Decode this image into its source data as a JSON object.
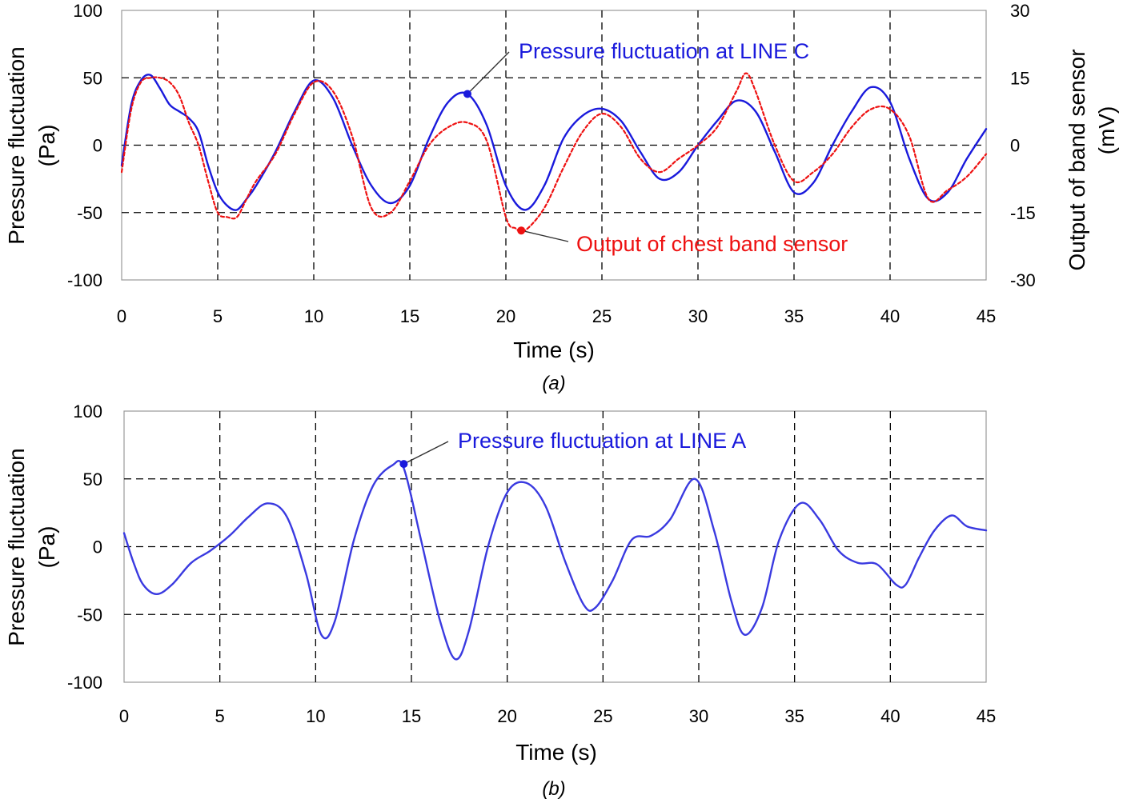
{
  "chart_data": [
    {
      "type": "line",
      "caption": "(a)",
      "xlabel": "Time (s)",
      "ylabel_lines": [
        "Pressure fluctuation",
        "(Pa)"
      ],
      "y2label_lines": [
        "Output of band sensor",
        "(mV)"
      ],
      "xlim": [
        0,
        45
      ],
      "ylim": [
        -100,
        100
      ],
      "y2lim": [
        -30,
        30
      ],
      "xticks": [
        "0",
        "5",
        "10",
        "15",
        "20",
        "25",
        "30",
        "35",
        "40",
        "45"
      ],
      "yticks": [
        "100",
        "50",
        "0",
        "-50",
        "-100"
      ],
      "y2ticks": [
        "30",
        "15",
        "0",
        "-15",
        "-30"
      ],
      "grid": true,
      "series": [
        {
          "name": "Pressure fluctuation at LINE C",
          "axis": "left",
          "color": "#1a1adc",
          "style": "solid",
          "x": [
            0,
            0.5,
            1,
            1.5,
            2,
            2.5,
            3,
            3.5,
            4,
            4.5,
            5,
            5.5,
            6,
            6.5,
            7,
            8,
            9,
            10,
            11,
            12,
            13,
            14,
            15,
            16,
            17,
            18,
            19,
            20,
            21,
            22,
            23,
            24,
            25,
            26,
            27,
            28,
            29,
            30,
            31,
            32,
            33,
            34,
            35,
            36,
            37,
            38,
            39,
            40,
            41,
            42,
            43,
            44,
            45
          ],
          "y": [
            -15,
            30,
            48,
            52,
            42,
            30,
            25,
            20,
            10,
            -15,
            -35,
            -45,
            -48,
            -40,
            -30,
            -5,
            25,
            48,
            35,
            0,
            -30,
            -43,
            -30,
            5,
            32,
            38,
            15,
            -30,
            -48,
            -30,
            5,
            22,
            27,
            18,
            -5,
            -25,
            -20,
            0,
            18,
            33,
            25,
            -5,
            -35,
            -28,
            0,
            25,
            43,
            32,
            -10,
            -40,
            -35,
            -10,
            12
          ]
        },
        {
          "name": "Output of chest band sensor",
          "axis": "right",
          "color": "#ee1111",
          "style": "dashed",
          "x": [
            0,
            0.5,
            1,
            1.5,
            2,
            2.5,
            3,
            3.5,
            4,
            4.5,
            5,
            5.5,
            6,
            6.5,
            7,
            8,
            9,
            10,
            11,
            12,
            13,
            14,
            15,
            16,
            17,
            18,
            19,
            20,
            20.5,
            21,
            22,
            23,
            24,
            25,
            26,
            27,
            28,
            29,
            30,
            31,
            32,
            32.5,
            33,
            34,
            35,
            36,
            37,
            38,
            39,
            40,
            41,
            42,
            43,
            44,
            45
          ],
          "y": [
            -6,
            8,
            14,
            15,
            15,
            14,
            11,
            5,
            0,
            -8,
            -15,
            -16,
            -16,
            -12,
            -8,
            -2,
            7,
            14,
            12,
            2,
            -14,
            -15,
            -8,
            0,
            4,
            5,
            1,
            -16,
            -18.5,
            -19,
            -14,
            -5,
            3,
            7,
            4,
            -3,
            -6,
            -3,
            0,
            4,
            12,
            16,
            12,
            0,
            -8,
            -6,
            -2,
            4,
            8,
            8,
            2,
            -12,
            -10,
            -7,
            -2
          ]
        }
      ],
      "annotations": [
        {
          "text": "Pressure fluctuation at LINE C",
          "point": [
            18,
            38
          ],
          "axis": "left",
          "color": "#1a1adc"
        },
        {
          "text": "Output of chest band sensor",
          "point": [
            20.8,
            -19
          ],
          "axis": "right",
          "color": "#ee1111"
        }
      ]
    },
    {
      "type": "line",
      "caption": "(b)",
      "xlabel": "Time (s)",
      "ylabel_lines": [
        "Pressure fluctuation",
        "(Pa)"
      ],
      "xlim": [
        0,
        45
      ],
      "ylim": [
        -100,
        100
      ],
      "xticks": [
        "0",
        "5",
        "10",
        "15",
        "20",
        "25",
        "30",
        "35",
        "40",
        "45"
      ],
      "yticks": [
        "100",
        "50",
        "0",
        "-50",
        "-100"
      ],
      "grid": true,
      "series": [
        {
          "name": "Pressure fluctuation at LINE A",
          "axis": "left",
          "color": "#3a3ae0",
          "style": "solid",
          "x": [
            0,
            0.5,
            1,
            1.7,
            2.5,
            3.5,
            4.5,
            5.5,
            6.5,
            7.5,
            8.5,
            9.5,
            10.3,
            11,
            12,
            13,
            14,
            14.6,
            15.5,
            16.5,
            17.3,
            18,
            19,
            20,
            21,
            22,
            23,
            24,
            24.6,
            25.5,
            26.5,
            27.5,
            28.5,
            29.8,
            30.8,
            31.7,
            32.4,
            33.3,
            34.2,
            35.3,
            36.3,
            37.3,
            38.3,
            39.3,
            40.3,
            40.8,
            41.5,
            42.3,
            43.2,
            44,
            45
          ],
          "y": [
            10,
            -12,
            -28,
            -35,
            -28,
            -12,
            -3,
            8,
            22,
            32,
            22,
            -20,
            -65,
            -55,
            5,
            45,
            60,
            58,
            5,
            -55,
            -83,
            -62,
            0,
            40,
            47,
            30,
            -10,
            -43,
            -45,
            -25,
            5,
            8,
            20,
            50,
            12,
            -40,
            -65,
            -45,
            5,
            32,
            20,
            -3,
            -12,
            -13,
            -28,
            -28,
            -8,
            12,
            23,
            15,
            12
          ]
        }
      ],
      "annotations": [
        {
          "text": "Pressure fluctuation at LINE A",
          "point": [
            14.6,
            61
          ],
          "axis": "left",
          "color": "#1a1adc"
        }
      ]
    }
  ]
}
